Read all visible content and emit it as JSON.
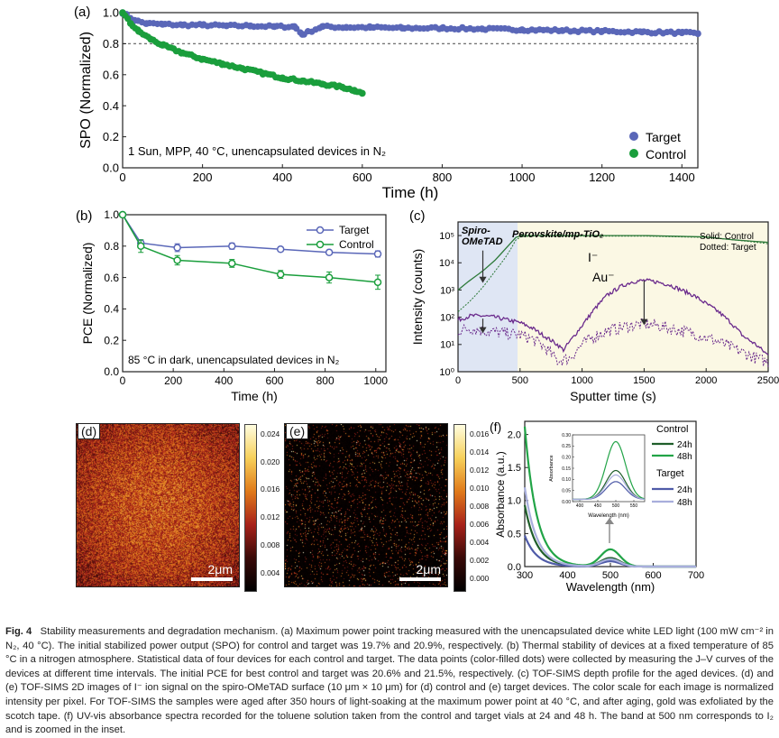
{
  "figure": {
    "caption": {
      "label": "Fig. 4",
      "text": "Stability measurements and degradation mechanism. (a) Maximum power point tracking measured with the unencapsulated device white LED light (100 mW cm⁻² in N₂, 40 °C). The initial stabilized power output (SPO) for control and target was 19.7% and 20.9%, respectively. (b) Thermal stability of devices at a fixed temperature of 85 °C in a nitrogen atmosphere. Statistical data of four devices for each control and target. The data points (color-filled dots) were collected by measuring the J–V curves of the devices at different time intervals. The initial PCE for best control and target was 20.6% and 21.5%, respectively. (c) TOF-SIMS depth profile for the aged devices. (d) and (e) TOF-SIMS 2D images of I⁻ ion signal on the spiro-OMeTAD surface (10 μm × 10 μm) for (d) control and (e) target devices. The color scale for each image is normalized intensity per pixel. For TOF-SIMS the samples were aged after 350 hours of light-soaking at the maximum power point at 40 °C, and after aging, gold was exfoliated by the scotch tape. (f) UV-vis absorbance spectra recorded for the toluene solution taken from the control and target vials at 24 and 48 h. The band at 500 nm corresponds to I₂ and is zoomed in the inset."
    },
    "panels": {
      "a": {
        "label": "(a)",
        "annotation": "1 Sun, MPP, 40 °C, unencapsulated devices in N₂"
      },
      "b": {
        "label": "(b)",
        "annotation": "85 °C in dark, unencapsulated devices in N₂"
      },
      "c": {
        "label": "(c)",
        "region1": "Spiro-",
        "region1b": "OMeTAD",
        "region2": "Perovskite/mp-TiO₂",
        "note1": "Solid: Control",
        "note2": "Dotted: Target",
        "ion1": "I⁻",
        "ion2": "Au⁻"
      },
      "d": {
        "label": "(d)",
        "scalebar": "2μm",
        "colorbar_ticks": [
          "0.024",
          "0.020",
          "0.016",
          "0.012",
          "0.008",
          "0.004"
        ]
      },
      "e": {
        "label": "(e)",
        "scalebar": "2μm",
        "colorbar_ticks": [
          "0.016",
          "0.014",
          "0.012",
          "0.010",
          "0.008",
          "0.006",
          "0.004",
          "0.002",
          "0.000"
        ]
      },
      "f": {
        "label": "(f)",
        "legend_control": "Control",
        "legend_target": "Target",
        "leg_24": "24h",
        "leg_48": "48h",
        "leg_24b": "24h",
        "leg_48b": "48h"
      }
    },
    "colors": {
      "target": "#5a67b8",
      "control": "#1a9e3c",
      "purple": "#6a2a8c",
      "darkgreen": "#2e7a3a",
      "dashed": "#777777"
    }
  },
  "chart_data": [
    {
      "panel": "a",
      "type": "scatter",
      "xlabel": "Time (h)",
      "ylabel": "SPO (Normalized)",
      "xlim": [
        0,
        1440
      ],
      "ylim": [
        0.0,
        1.0
      ],
      "xticks": [
        0,
        200,
        400,
        600,
        800,
        1000,
        1200,
        1400
      ],
      "yticks": [
        0.0,
        0.2,
        0.4,
        0.6,
        0.8,
        1.0
      ],
      "reference_line": 0.8,
      "legend": "bottom-right",
      "series": [
        {
          "name": "Target",
          "x": [
            0,
            30,
            60,
            100,
            150,
            200,
            260,
            320,
            380,
            430,
            450,
            500,
            560,
            620,
            700,
            800,
            900,
            1000,
            1100,
            1200,
            1300,
            1400,
            1440
          ],
          "y": [
            1.0,
            0.95,
            0.93,
            0.925,
            0.92,
            0.92,
            0.915,
            0.915,
            0.91,
            0.91,
            0.86,
            0.91,
            0.905,
            0.905,
            0.9,
            0.9,
            0.895,
            0.89,
            0.885,
            0.88,
            0.875,
            0.87,
            0.865
          ]
        },
        {
          "name": "Control",
          "x": [
            0,
            20,
            40,
            70,
            100,
            150,
            200,
            250,
            300,
            350,
            400,
            450,
            500,
            550,
            580,
            600
          ],
          "y": [
            1.0,
            0.93,
            0.88,
            0.83,
            0.79,
            0.74,
            0.7,
            0.67,
            0.64,
            0.61,
            0.58,
            0.56,
            0.54,
            0.52,
            0.5,
            0.48
          ]
        }
      ]
    },
    {
      "panel": "b",
      "type": "line",
      "xlabel": "Time (h)",
      "ylabel": "PCE (Normalized)",
      "xlim": [
        0,
        1040
      ],
      "ylim": [
        0.0,
        1.0
      ],
      "xticks": [
        0,
        200,
        400,
        600,
        800,
        1000
      ],
      "yticks": [
        0.0,
        0.2,
        0.4,
        0.6,
        0.8,
        1.0
      ],
      "legend": "top-right",
      "x": [
        0,
        72,
        216,
        432,
        624,
        816,
        1008
      ],
      "series": [
        {
          "name": "Target",
          "values": [
            1.0,
            0.82,
            0.79,
            0.8,
            0.78,
            0.76,
            0.75
          ],
          "err": [
            0,
            0.02,
            0.025,
            0.02,
            0.015,
            0.015,
            0.02
          ]
        },
        {
          "name": "Control",
          "values": [
            1.0,
            0.8,
            0.71,
            0.69,
            0.62,
            0.6,
            0.57
          ],
          "err": [
            0,
            0.04,
            0.03,
            0.025,
            0.025,
            0.035,
            0.045
          ]
        }
      ]
    },
    {
      "panel": "c",
      "type": "line",
      "xlabel": "Sputter time (s)",
      "ylabel": "Intensity (counts)",
      "xlim": [
        0,
        2500
      ],
      "ylim_log10": [
        0,
        5.5
      ],
      "xticks": [
        0,
        500,
        1000,
        1500,
        2000,
        2500
      ],
      "yticks": [
        "10⁰",
        "10¹",
        "10²",
        "10³",
        "10⁴",
        "10⁵"
      ],
      "regions": [
        [
          0,
          480
        ],
        [
          480,
          2500
        ]
      ],
      "series": [
        {
          "name": "I⁻ control",
          "style": "solid",
          "x": [
            0,
            80,
            200,
            300,
            400,
            480,
            600,
            1000,
            1500,
            2000,
            2200,
            2350,
            2500
          ],
          "log10y": [
            3.0,
            3.3,
            3.7,
            4.1,
            4.6,
            5.0,
            5.0,
            5.0,
            5.0,
            4.95,
            4.85,
            4.8,
            4.75
          ]
        },
        {
          "name": "I⁻ target",
          "style": "dotted",
          "x": [
            0,
            100,
            200,
            300,
            400,
            480,
            600,
            1000,
            1500,
            2000,
            2200,
            2350,
            2500
          ],
          "log10y": [
            2.2,
            2.6,
            3.1,
            3.7,
            4.3,
            4.95,
            4.98,
            4.98,
            4.98,
            4.93,
            4.85,
            4.78,
            4.7
          ]
        },
        {
          "name": "Au⁻ control",
          "style": "solid",
          "x": [
            0,
            100,
            200,
            300,
            400,
            500,
            600,
            700,
            800,
            850,
            900,
            1000,
            1100,
            1200,
            1300,
            1400,
            1500,
            1600,
            1700,
            1800,
            1900,
            2000,
            2100,
            2200,
            2300,
            2400,
            2500
          ],
          "log10y": [
            1.9,
            2.05,
            2.05,
            2.0,
            1.9,
            1.8,
            1.6,
            1.3,
            1.0,
            0.8,
            1.1,
            1.7,
            2.3,
            2.8,
            3.1,
            3.3,
            3.35,
            3.3,
            3.2,
            3.0,
            2.8,
            2.5,
            2.2,
            1.8,
            1.3,
            1.0,
            0.6
          ]
        },
        {
          "name": "Au⁻ target",
          "style": "dotted",
          "x": [
            0,
            100,
            200,
            300,
            400,
            500,
            600,
            700,
            800,
            900,
            1000,
            1100,
            1200,
            1300,
            1400,
            1500,
            1600,
            1700,
            1800,
            1900,
            2000,
            2100,
            2200,
            2300,
            2400,
            2500
          ],
          "log10y": [
            1.5,
            1.6,
            1.5,
            1.45,
            1.4,
            1.35,
            1.2,
            0.9,
            0.4,
            0.5,
            1.0,
            1.3,
            1.5,
            1.6,
            1.7,
            1.75,
            1.7,
            1.6,
            1.5,
            1.4,
            1.25,
            1.1,
            0.9,
            0.7,
            0.5,
            0.35
          ]
        }
      ]
    },
    {
      "panel": "f",
      "type": "line",
      "xlabel": "Wavelength (nm)",
      "ylabel": "Absorbance (a.u.)",
      "xlim": [
        300,
        700
      ],
      "ylim": [
        0.0,
        2.2
      ],
      "xticks": [
        300,
        400,
        500,
        600,
        700
      ],
      "yticks": [
        0.0,
        0.5,
        1.0,
        1.5,
        2.0
      ],
      "legend": "top-right",
      "inset": {
        "xlabel": "Wavelength (nm)",
        "ylabel": "Absorbance",
        "xticks": [
          400,
          450,
          500,
          550
        ],
        "yticks": [
          0.0,
          0.05,
          0.1,
          0.15,
          0.2,
          0.25,
          0.3
        ]
      },
      "series": [
        {
          "name": "Control 24h",
          "color": "#1f5e2a",
          "peak300": 0.93,
          "peak500": 0.13
        },
        {
          "name": "Control 48h",
          "color": "#22a447",
          "peak300": 2.12,
          "peak500": 0.26
        },
        {
          "name": "Target 24h",
          "color": "#4f5ba8",
          "peak300": 0.47,
          "peak500": 0.08
        },
        {
          "name": "Target 48h",
          "color": "#a8aedc",
          "peak300": 1.2,
          "peak500": 0.11
        }
      ]
    }
  ]
}
